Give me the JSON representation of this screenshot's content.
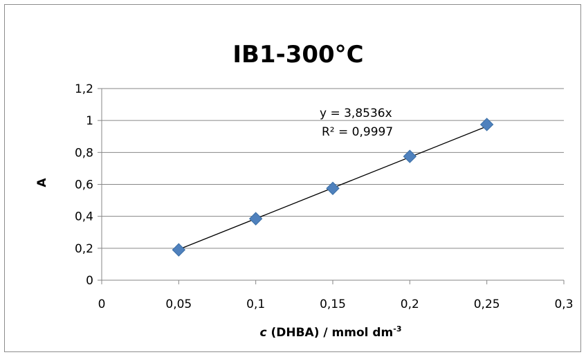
{
  "chart_data": {
    "type": "scatter",
    "title": "IB1-300°C",
    "xlabel": {
      "italic": "c",
      "main": " (DHBA) / mmol dm",
      "superscript": "-3"
    },
    "ylabel": "A",
    "xlim": [
      0,
      0.3
    ],
    "ylim": [
      0,
      1.2
    ],
    "xticks": [
      0,
      0.05,
      0.1,
      0.15,
      0.2,
      0.25,
      0.3
    ],
    "xtick_labels": [
      "0",
      "0,05",
      "0,1",
      "0,15",
      "0,2",
      "0,25",
      "0,3"
    ],
    "yticks": [
      0,
      0.2,
      0.4,
      0.6,
      0.8,
      1.0,
      1.2
    ],
    "ytick_labels": [
      "0",
      "0,2",
      "0,4",
      "0,6",
      "0,8",
      "1",
      "1,2"
    ],
    "grid": {
      "horizontal": true,
      "vertical": false
    },
    "series": [
      {
        "marker": "diamond",
        "color": "#4f81bd",
        "x": [
          0.05,
          0.1,
          0.15,
          0.2,
          0.25
        ],
        "y": [
          0.19,
          0.385,
          0.575,
          0.775,
          0.975
        ]
      }
    ],
    "trendline": {
      "type": "linear-through-origin",
      "slope": 3.8536,
      "x_range": [
        0.05,
        0.25
      ],
      "color": "#000000",
      "equation": "y = 3,8536x",
      "r_squared": "R² = 0,9997"
    }
  }
}
